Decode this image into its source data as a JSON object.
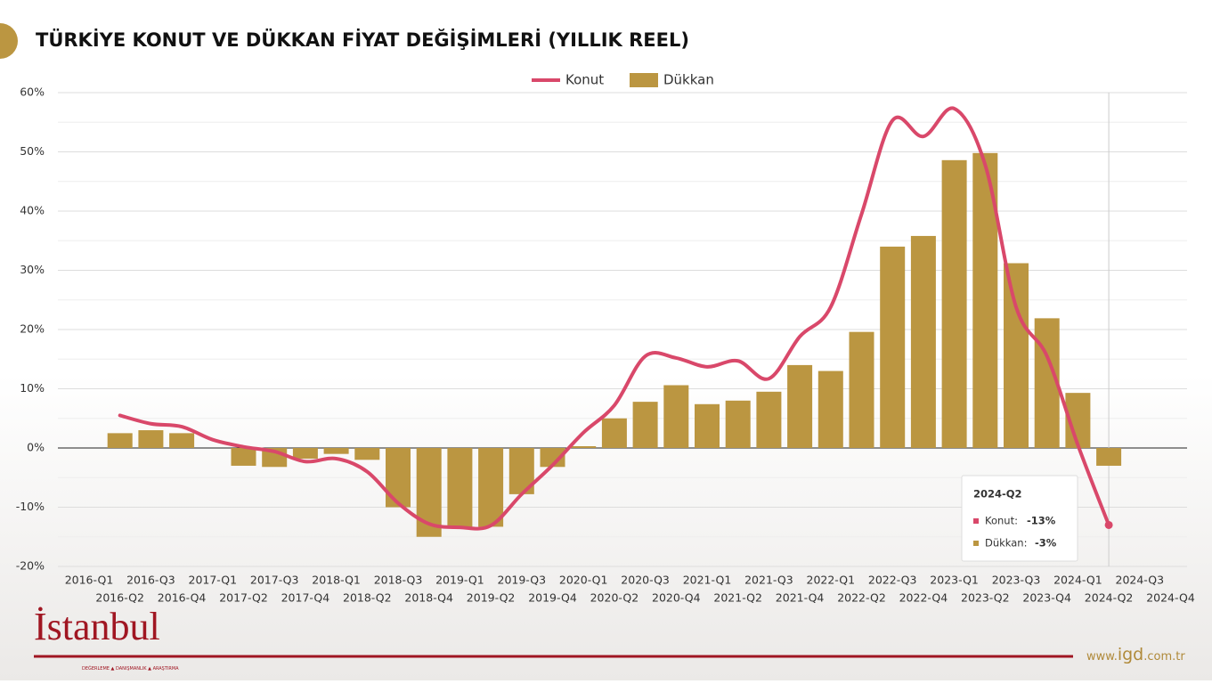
{
  "chart_data": {
    "type": "bar-line",
    "title": "TÜRKİYE KONUT VE DÜKKAN FİYAT DEĞİŞİMLERİ (YILLIK REEL)",
    "categories": [
      "2016-Q1",
      "2016-Q2",
      "2016-Q3",
      "2016-Q4",
      "2017-Q1",
      "2017-Q2",
      "2017-Q3",
      "2017-Q4",
      "2018-Q1",
      "2018-Q2",
      "2018-Q3",
      "2018-Q4",
      "2019-Q1",
      "2019-Q2",
      "2019-Q3",
      "2019-Q4",
      "2020-Q1",
      "2020-Q2",
      "2020-Q3",
      "2020-Q4",
      "2021-Q1",
      "2021-Q2",
      "2021-Q3",
      "2021-Q4",
      "2022-Q1",
      "2022-Q2",
      "2022-Q3",
      "2022-Q4",
      "2023-Q1",
      "2023-Q2",
      "2023-Q3",
      "2023-Q4",
      "2024-Q1",
      "2024-Q2",
      "2024-Q3",
      "2024-Q4"
    ],
    "series": [
      {
        "name": "Konut",
        "type": "line",
        "color": "#d9486a",
        "values": [
          null,
          5.5,
          4.1,
          3.6,
          1.4,
          0.2,
          -0.6,
          -2.3,
          -1.8,
          -4,
          -9.3,
          -12.8,
          -13.4,
          -13.1,
          -7.8,
          -2.9,
          2.6,
          7.2,
          15.5,
          15.2,
          13.7,
          14.7,
          11.7,
          18.8,
          23.8,
          39.5,
          55.3,
          52.6,
          57.3,
          47.8,
          23.8,
          15.5,
          0.5,
          -13,
          null,
          null
        ]
      },
      {
        "name": "Dükkan",
        "type": "bar",
        "color": "#bb9641",
        "values": [
          null,
          2.5,
          3,
          2.5,
          0,
          -3,
          -3.2,
          -1.8,
          -1,
          -2,
          -10,
          -15,
          -13.5,
          -13.3,
          -7.8,
          -3.2,
          0.3,
          5,
          7.8,
          10.6,
          7.4,
          8,
          9.5,
          14,
          13,
          19.6,
          34,
          35.8,
          48.6,
          49.8,
          31.2,
          21.9,
          9.3,
          -3,
          null,
          null
        ]
      }
    ],
    "ylim": [
      -20,
      60
    ],
    "yticks": [
      {
        "value": -20,
        "label": "-20%"
      },
      {
        "value": -10,
        "label": "-10%"
      },
      {
        "value": 0,
        "label": "0%"
      },
      {
        "value": 10,
        "label": "10%"
      },
      {
        "value": 20,
        "label": "20%"
      },
      {
        "value": 30,
        "label": "30%"
      },
      {
        "value": 40,
        "label": "40%"
      },
      {
        "value": 50,
        "label": "50%"
      },
      {
        "value": 60,
        "label": "60%"
      }
    ],
    "grid": true,
    "legend": "top",
    "tooltip": {
      "title": "2024-Q2",
      "items": [
        {
          "label": "Konut:",
          "value": "-13%"
        },
        {
          "label": "Dükkan:",
          "value": "-3%"
        }
      ]
    }
  },
  "footer": {
    "logo": "İstanbul",
    "tagline": "DEĞERLEME ▲ DANIŞMANLIK ▲ ARAŞTIRMA",
    "site_prefix": "www.",
    "site_main": "igd",
    "site_suffix": ".com.tr"
  }
}
